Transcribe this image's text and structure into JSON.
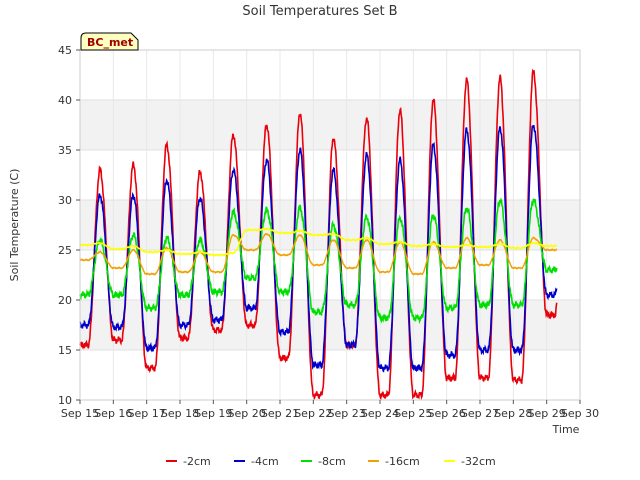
{
  "chart_data": {
    "type": "line",
    "title": "Soil Temperatures Set B",
    "xlabel": "Time",
    "ylabel": "Soil Temperature (C)",
    "station_label": "BC_met",
    "xlim": [
      15,
      30
    ],
    "ylim": [
      10,
      45
    ],
    "x_ticks": [
      15,
      16,
      17,
      18,
      19,
      20,
      21,
      22,
      23,
      24,
      25,
      26,
      27,
      28,
      29,
      30
    ],
    "x_tick_labels": [
      "Sep 15",
      "Sep 16",
      "Sep 17",
      "Sep 18",
      "Sep 19",
      "Sep 20",
      "Sep 21",
      "Sep 22",
      "Sep 23",
      "Sep 24",
      "Sep 25",
      "Sep 26",
      "Sep 27",
      "Sep 28",
      "Sep 29",
      "Sep 30"
    ],
    "y_ticks": [
      10,
      15,
      20,
      25,
      30,
      35,
      40,
      45
    ],
    "y_tick_labels": [
      "10",
      "15",
      "20",
      "25",
      "30",
      "35",
      "40",
      "45"
    ],
    "legend_position": "bottom",
    "x_end": 29.3,
    "series": [
      {
        "name": "-2cm",
        "color": "#e8000b",
        "lows": [
          15.5,
          16.0,
          13.2,
          16.2,
          17.0,
          17.5,
          14.2,
          10.5,
          15.5,
          10.5,
          10.5,
          12.2,
          12.2,
          12.0,
          18.5
        ],
        "highs": [
          33.0,
          33.5,
          35.5,
          32.8,
          36.5,
          37.5,
          38.7,
          36.2,
          38.2,
          39.0,
          40.0,
          42.0,
          42.2,
          42.8
        ]
      },
      {
        "name": "-4cm",
        "color": "#0000cc",
        "lows": [
          17.5,
          17.3,
          15.2,
          17.5,
          18.0,
          19.2,
          16.8,
          13.5,
          15.5,
          13.2,
          13.2,
          14.5,
          15.0,
          15.0,
          20.5
        ],
        "highs": [
          30.5,
          30.5,
          32.0,
          30.2,
          33.0,
          34.0,
          35.0,
          33.0,
          34.5,
          34.0,
          35.5,
          37.0,
          37.2,
          37.5
        ]
      },
      {
        "name": "-8cm",
        "color": "#00e000",
        "lows": [
          20.5,
          20.5,
          19.2,
          20.5,
          20.8,
          22.2,
          20.8,
          18.8,
          19.5,
          18.2,
          18.2,
          19.2,
          19.5,
          19.5,
          23.0
        ],
        "highs": [
          26.0,
          26.5,
          26.2,
          26.0,
          28.8,
          29.0,
          29.2,
          27.5,
          28.3,
          28.2,
          28.5,
          29.2,
          30.0,
          30.0
        ]
      },
      {
        "name": "-16cm",
        "color": "#f0a000",
        "lows": [
          24.0,
          23.2,
          22.6,
          22.8,
          22.8,
          25.0,
          24.5,
          23.5,
          23.2,
          22.8,
          22.6,
          23.2,
          23.5,
          23.2,
          25.0
        ],
        "highs": [
          24.8,
          25.0,
          25.2,
          24.8,
          26.5,
          26.6,
          26.5,
          26.0,
          26.0,
          25.8,
          25.8,
          26.2,
          26.0,
          26.2
        ]
      },
      {
        "name": "-32cm",
        "color": "#ffff00",
        "lows": [
          25.5,
          25.1,
          24.8,
          24.6,
          24.5,
          27.0,
          26.7,
          26.5,
          26.0,
          25.6,
          25.4,
          25.3,
          25.3,
          25.2,
          25.4
        ],
        "highs": [
          25.7,
          25.4,
          25.0,
          24.8,
          24.7,
          27.1,
          26.9,
          26.6,
          26.2,
          25.8,
          25.6,
          25.5,
          25.6,
          25.7
        ]
      }
    ]
  }
}
